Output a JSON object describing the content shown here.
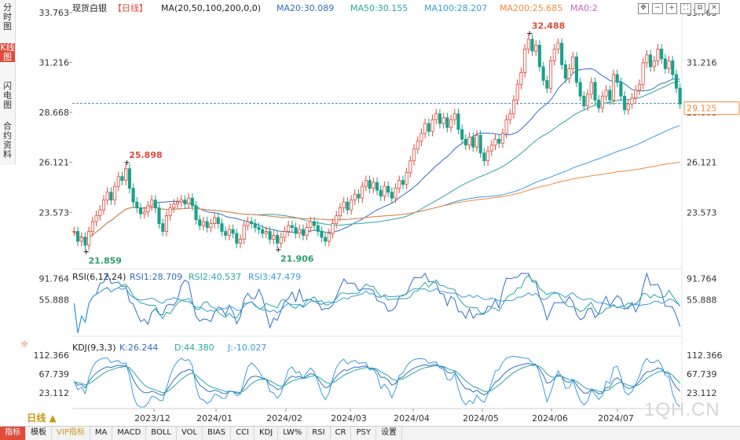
{
  "sidebar": {
    "tabs": [
      {
        "label": "分时图",
        "active": false
      },
      {
        "label": "K线图",
        "active": true
      },
      {
        "label": "闪电图",
        "active": false
      },
      {
        "label": "合约资料",
        "active": false
      }
    ]
  },
  "header": {
    "name": "现货白银",
    "period_tag": "【日线】",
    "ma_title": "MA(20,50,100,200,0,0)",
    "ma20": "MA20:30.089",
    "ma50": "MA50:30.155",
    "ma100": "MA100:28.207",
    "ma200": "MA200:25.685",
    "ma0": "MA0:2"
  },
  "colors": {
    "up": "#e04b3a",
    "down": "#1aa08a",
    "ma20": "#2f6ec7",
    "ma50": "#2aa6a0",
    "ma100": "#3a9be0",
    "ma200": "#f08a3c",
    "rsi1": "#2f6ec7",
    "rsi2": "#2aa6a0",
    "rsi3": "#3a9be0"
  },
  "price_axis": {
    "ticks": [
      "33.763",
      "31.216",
      "28.668",
      "26.121",
      "23.573"
    ],
    "current": "29.125"
  },
  "annotations": {
    "high": "32.488",
    "low1": "21.859",
    "low2": "21.906",
    "peak1": "25.898"
  },
  "rsi": {
    "title": "RSI(6,12,24)",
    "rsi1": "RSI1:28.709",
    "rsi2": "RSI2:40.537",
    "rsi3": "RSI3:47.479",
    "ticks": [
      "91.764",
      "55.888"
    ]
  },
  "kdj": {
    "title": "KDJ(9,3,3)",
    "k": "K:26.244",
    "d": "D:44.380",
    "j": "J:-10.027",
    "ticks": [
      "112.366",
      "67.739",
      "23.112"
    ]
  },
  "x_axis": {
    "labels": [
      "2023/12",
      "2024/01",
      "2024/02",
      "2024/03",
      "2024/04",
      "2024/05",
      "2024/06",
      "2024/07"
    ]
  },
  "period_selector": "日线 ▲",
  "toolbar": [
    "指标",
    "模板",
    "VIP指标",
    "MA",
    "MACD",
    "BOLL",
    "VOL",
    "BIAS",
    "CCI",
    "KDJ",
    "LW%",
    "RSI",
    "CR",
    "PSY",
    "设置"
  ],
  "watermark": "1QH.CN",
  "chart_data": {
    "type": "candlestick",
    "title": "现货白银 日线",
    "y_ticks": [
      33.763,
      31.216,
      28.668,
      26.121,
      23.573
    ],
    "ylim": [
      21.5,
      34.0
    ],
    "current_price": 29.125,
    "x_labels": [
      "2023/12",
      "2024/01",
      "2024/02",
      "2024/03",
      "2024/04",
      "2024/05",
      "2024/06",
      "2024/07"
    ],
    "close": [
      22.6,
      22.1,
      22.3,
      21.9,
      22.6,
      23.1,
      23.4,
      23.7,
      24.2,
      24.6,
      24.2,
      24.9,
      25.4,
      25.2,
      25.8,
      24.8,
      24.1,
      23.8,
      23.5,
      23.6,
      23.9,
      24.2,
      23.8,
      23.0,
      22.6,
      23.4,
      23.8,
      24.0,
      24.1,
      24.2,
      24.0,
      24.3,
      23.9,
      23.2,
      22.9,
      23.1,
      22.8,
      23.0,
      23.3,
      23.0,
      22.6,
      22.4,
      22.7,
      22.5,
      22.0,
      22.2,
      22.9,
      23.1,
      23.0,
      22.8,
      22.7,
      22.5,
      22.6,
      22.2,
      22.4,
      22.0,
      22.3,
      22.6,
      22.9,
      22.8,
      22.5,
      22.7,
      22.4,
      22.8,
      23.1,
      22.9,
      22.6,
      22.3,
      22.1,
      22.5,
      23.0,
      23.4,
      23.8,
      24.1,
      23.7,
      24.2,
      24.5,
      24.3,
      24.9,
      25.2,
      24.8,
      25.1,
      24.7,
      24.4,
      24.9,
      24.6,
      24.3,
      24.8,
      25.2,
      25.0,
      25.6,
      26.2,
      26.8,
      27.2,
      27.6,
      28.1,
      27.7,
      28.3,
      28.6,
      28.1,
      28.4,
      27.9,
      28.3,
      28.6,
      27.8,
      27.3,
      27.0,
      27.4,
      26.9,
      27.5,
      26.6,
      26.2,
      26.7,
      27.0,
      27.3,
      27.1,
      27.6,
      28.3,
      28.6,
      29.3,
      30.1,
      30.7,
      31.9,
      32.4,
      31.8,
      32.1,
      31.0,
      30.3,
      29.9,
      31.3,
      31.9,
      32.2,
      31.1,
      30.4,
      30.9,
      31.5,
      30.2,
      29.5,
      29.0,
      29.6,
      30.2,
      29.3,
      28.9,
      29.5,
      29.8,
      29.3,
      30.6,
      30.2,
      29.5,
      28.8,
      29.1,
      29.4,
      29.8,
      30.1,
      31.2,
      31.6,
      31.0,
      31.3,
      31.9,
      31.4,
      30.9,
      31.3,
      30.6,
      29.9,
      29.1
    ]
  }
}
